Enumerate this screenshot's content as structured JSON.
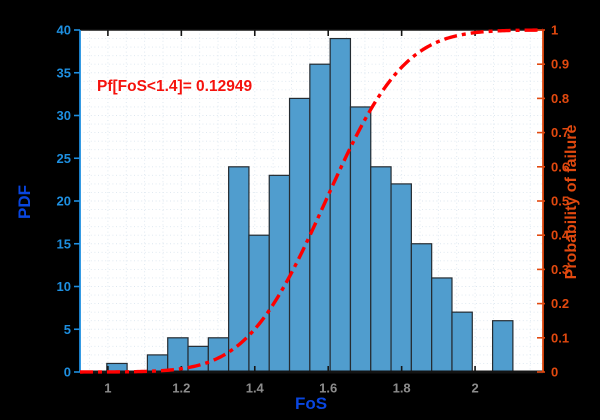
{
  "chart_data": {
    "type": "bar",
    "subtype": "histogram-with-cdf-overlay",
    "title": "",
    "annotation": "Pf[FoS<1.4]= 0.12949",
    "xlabel": "FoS",
    "ylabel_left": "PDF",
    "ylabel_right": "Probability of failure",
    "xlim": [
      0.924,
      2.185
    ],
    "ylim_left": [
      0,
      40
    ],
    "ylim_right": [
      0,
      1
    ],
    "x_ticks": [
      1,
      1.2,
      1.4,
      1.6,
      1.8,
      2
    ],
    "y_ticks_left": [
      0,
      5,
      10,
      15,
      20,
      25,
      30,
      35,
      40
    ],
    "y_ticks_right": [
      0,
      0.1,
      0.2,
      0.3,
      0.4,
      0.5,
      0.6,
      0.7,
      0.8,
      0.9,
      1
    ],
    "histogram": {
      "bin_start": 0.997,
      "bin_width": 0.0553,
      "counts": [
        1,
        0,
        2,
        4,
        3,
        4,
        24,
        16,
        23,
        32,
        36,
        39,
        31,
        24,
        22,
        15,
        11,
        7,
        0,
        6
      ]
    },
    "cdf_curve": {
      "distribution": "normal",
      "mean": 1.593,
      "sigma": 0.168,
      "style": "dash-dot",
      "pf_at_1_4": 0.12949
    },
    "grid": {
      "x_step": 0.05,
      "y_step_left": 1,
      "style": "dotted",
      "visible": true
    },
    "legend": {
      "visible": false
    },
    "colors": {
      "figure_bg": "#000000",
      "plot_bg": "#ffffff",
      "bar_fill": "#509DCE",
      "bar_edge": "#242B31",
      "cdf_line": "#FF0000",
      "left_axis": "#1E8FE0",
      "left_label": "#0946E0",
      "right_axis": "#E2490F",
      "x_axis": "#141414",
      "x_tick_label": "#8C8C8C",
      "annotation": "#F5120D",
      "grid": "#DCE6EF"
    }
  }
}
